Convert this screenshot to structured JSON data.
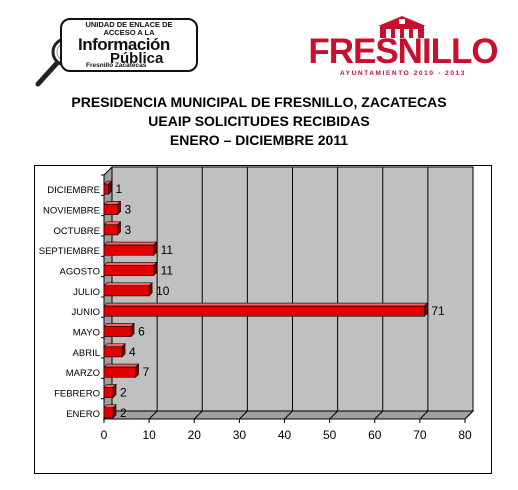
{
  "logo_left": {
    "line1": "UNIDAD DE ENLACE DE",
    "line2": "ACCESO A LA",
    "line3": "Información",
    "line4": "Pública",
    "line5": "Fresnillo Zacatecas"
  },
  "logo_right": {
    "name": "FRESNILLO",
    "subtitle": "AYUNTAMIENTO 2010 - 2013"
  },
  "titles": {
    "line1": "PRESIDENCIA MUNICIPAL DE FRESNILLO, ZACATECAS",
    "line2": "UEAIP SOLICITUDES RECIBIDAS",
    "line3": "ENERO – DICIEMBRE 2011"
  },
  "colors": {
    "bar": "#e00000",
    "bar_shadow": "#7a0000",
    "plot_bg": "#c0c0c0",
    "grid": "#000000",
    "brand_red": "#c8102e"
  },
  "chart_data": {
    "type": "bar",
    "orientation": "horizontal",
    "categories": [
      "DICIEMBRE",
      "NOVIEMBRE",
      "OCTUBRE",
      "SEPTIEMBRE",
      "AGOSTO",
      "JULIO",
      "JUNIO",
      "MAYO",
      "ABRIL",
      "MARZO",
      "FEBRERO",
      "ENERO"
    ],
    "values": [
      1,
      3,
      3,
      11,
      11,
      10,
      71,
      6,
      4,
      7,
      2,
      2
    ],
    "data_labels": [
      "1",
      "3",
      "3",
      "11",
      "11",
      "10",
      "71",
      "6",
      "4",
      "7",
      "2",
      "2"
    ],
    "xlim": [
      0,
      80
    ],
    "x_ticks": [
      "0",
      "10",
      "20",
      "30",
      "40",
      "50",
      "60",
      "70",
      "80"
    ],
    "grid": true,
    "legend": "none",
    "title": "",
    "xlabel": "",
    "ylabel": ""
  }
}
